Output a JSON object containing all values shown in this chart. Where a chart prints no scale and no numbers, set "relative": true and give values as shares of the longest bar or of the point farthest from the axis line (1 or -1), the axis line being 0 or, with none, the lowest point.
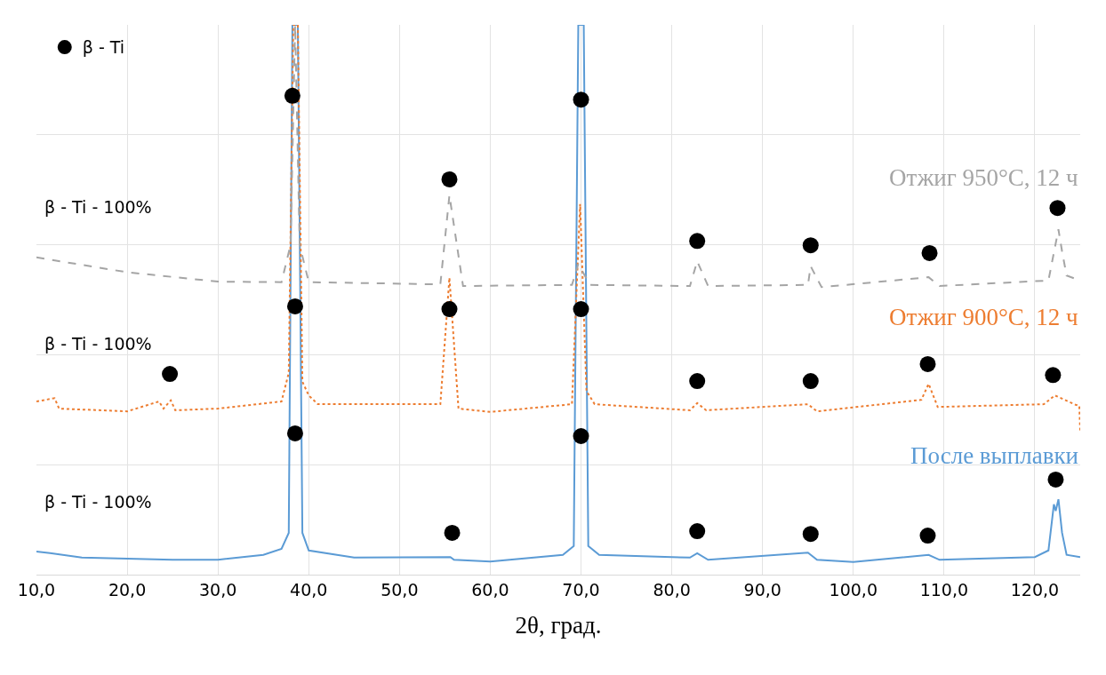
{
  "chart_data": {
    "type": "line",
    "relative": true,
    "xlabel": "2θ, град.",
    "xlim": [
      10,
      125
    ],
    "xticks": [
      {
        "value": 10,
        "label": "10,0"
      },
      {
        "value": 20,
        "label": "20,0"
      },
      {
        "value": 30,
        "label": "30,0"
      },
      {
        "value": 40,
        "label": "40,0"
      },
      {
        "value": 50,
        "label": "50,0"
      },
      {
        "value": 60,
        "label": "60,0"
      },
      {
        "value": 70,
        "label": "70,0"
      },
      {
        "value": 80,
        "label": "80,0"
      },
      {
        "value": 90,
        "label": "90,0"
      },
      {
        "value": 100,
        "label": "100,0"
      },
      {
        "value": 110,
        "label": "110,0"
      },
      {
        "value": 120,
        "label": "120,0"
      }
    ],
    "grid": true,
    "legend": "top left",
    "tick_labels": "x",
    "marker": "none",
    "annotations": [
      "β - Ti - 100%",
      "β - Ti - 100%",
      "β - Ti - 100%"
    ],
    "series": [
      {
        "name": "После выплавки",
        "color": "#5b9bd5",
        "line_style": "solid",
        "x": [
          10,
          11.5,
          15,
          25,
          30,
          35,
          37,
          37.8,
          38.2,
          38.8,
          39.3,
          40,
          45,
          55.6,
          56,
          60,
          68,
          69.2,
          69.7,
          70.3,
          70.8,
          72,
          82,
          82.8,
          84,
          95,
          96,
          100,
          108.3,
          109.5,
          120,
          121.5,
          122.1,
          122.3,
          122.6,
          123,
          123.5,
          125
        ],
        "values": [
          0.042,
          0.039,
          0.031,
          0.027,
          0.027,
          0.036,
          0.047,
          0.076,
          1,
          1,
          0.076,
          0.044,
          0.031,
          0.032,
          0.027,
          0.024,
          0.036,
          0.052,
          1,
          1,
          0.052,
          0.036,
          0.031,
          0.039,
          0.027,
          0.04,
          0.027,
          0.023,
          0.036,
          0.027,
          0.032,
          0.044,
          0.128,
          0.116,
          0.137,
          0.076,
          0.036,
          0.032
        ]
      },
      {
        "name": "Отжиг 900°C, 12 ч",
        "color": "#ed7d31",
        "line_style": "dotted",
        "x": [
          10,
          12,
          12.5,
          20,
          23.5,
          24,
          24.8,
          25.3,
          30,
          37,
          37.8,
          38.3,
          38.8,
          39.3,
          40,
          41,
          54.5,
          55.5,
          56.5,
          60,
          69,
          69.9,
          70.6,
          71.5,
          82,
          82.8,
          83.8,
          95,
          96,
          107.5,
          108.3,
          109.3,
          121,
          122.2,
          124.5,
          124.9,
          125
        ],
        "values": [
          0.315,
          0.321,
          0.302,
          0.297,
          0.315,
          0.302,
          0.317,
          0.299,
          0.302,
          0.315,
          0.367,
          1,
          1,
          0.351,
          0.326,
          0.31,
          0.31,
          0.54,
          0.302,
          0.296,
          0.31,
          0.674,
          0.334,
          0.31,
          0.299,
          0.312,
          0.299,
          0.31,
          0.297,
          0.318,
          0.347,
          0.305,
          0.31,
          0.326,
          0.309,
          0.307,
          0.262
        ]
      },
      {
        "name": "Отжиг 950°C, 12 ч",
        "color": "#a5a5a5",
        "line_style": "dashed",
        "x": [
          10,
          20,
          30,
          37,
          38,
          38.5,
          39,
          40,
          54.5,
          55.5,
          57,
          69,
          69.7,
          71,
          82,
          82.8,
          84,
          95,
          95.3,
          96.5,
          108.3,
          109.5,
          121.5,
          122.6,
          123,
          123.5,
          125
        ],
        "values": [
          0.577,
          0.55,
          0.533,
          0.532,
          0.6,
          1,
          0.6,
          0.532,
          0.528,
          0.69,
          0.525,
          0.527,
          0.565,
          0.527,
          0.525,
          0.57,
          0.525,
          0.527,
          0.561,
          0.523,
          0.541,
          0.525,
          0.535,
          0.628,
          0.588,
          0.544,
          0.535
        ]
      },
      {
        "name": "β - Ti",
        "type": "scatter",
        "color": "#000000",
        "marker": "circle",
        "x": [
          38.2,
          70,
          55.5,
          122.5,
          82.8,
          95.3,
          108.4,
          38.5,
          55.5,
          70,
          24.7,
          82.8,
          95.3,
          108.2,
          122,
          38.5,
          70,
          122.3,
          55.8,
          82.8,
          95.3,
          108.2
        ],
        "values": [
          0.871,
          0.864,
          0.719,
          0.667,
          0.607,
          0.599,
          0.585,
          0.488,
          0.483,
          0.483,
          0.365,
          0.352,
          0.352,
          0.383,
          0.363,
          0.257,
          0.252,
          0.173,
          0.076,
          0.079,
          0.074,
          0.071
        ]
      }
    ]
  }
}
